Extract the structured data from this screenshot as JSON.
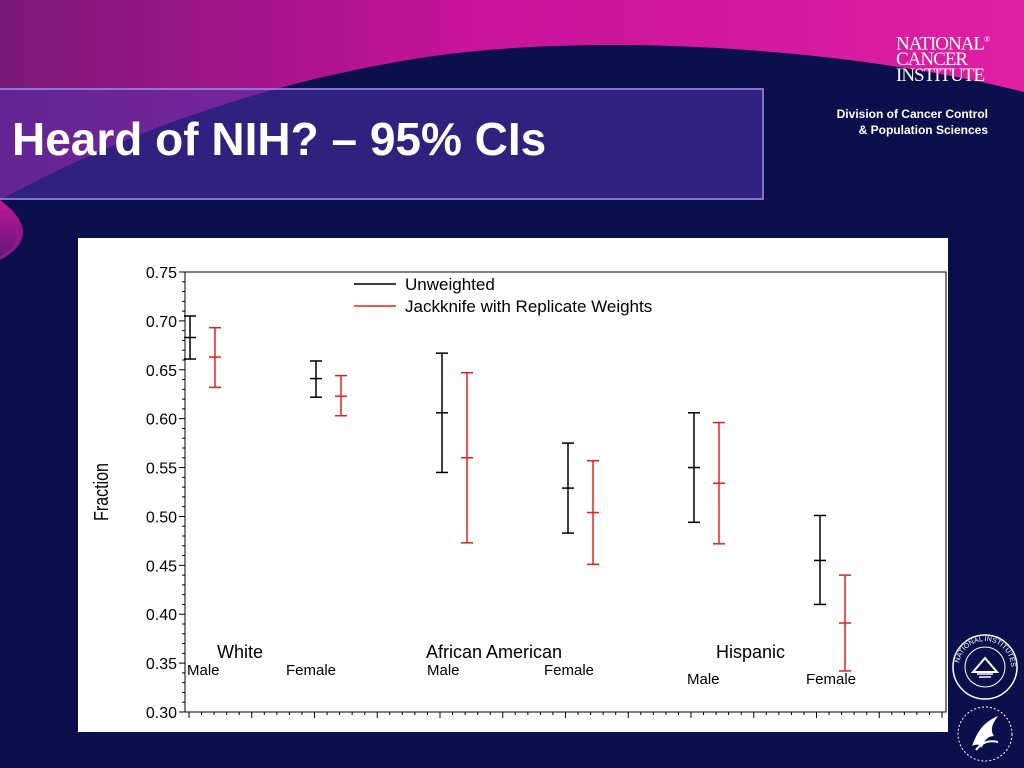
{
  "slide": {
    "title": "Heard of NIH? – 95% CIs",
    "logo_lines": [
      "NATIONAL",
      "CANCER",
      "INSTITUTE"
    ],
    "logo_mark": "®",
    "division_lines": [
      "Division of Cancer Control",
      "& Population Sciences"
    ],
    "seal_text": "NATIONAL INSTITUTES OF HEALTH",
    "colors": {
      "background": "#0b0f4c",
      "magenta": "#d1159b",
      "title_box": "#5032aa"
    }
  },
  "chart_data": {
    "type": "errorbar",
    "ylabel": "Fraction",
    "ylim": [
      0.3,
      0.75
    ],
    "yticks": [
      "0.30",
      "0.35",
      "0.40",
      "0.45",
      "0.50",
      "0.55",
      "0.60",
      "0.65",
      "0.70",
      "0.75"
    ],
    "group_labels": [
      "White",
      "African  American",
      "Hispanic"
    ],
    "subgroup_labels": [
      "Male",
      "Female",
      "Male",
      "Female",
      "Male",
      "Female"
    ],
    "series": [
      {
        "name": "Unweighted",
        "color": "#000000",
        "points": [
          {
            "mid": 0.683,
            "low": 0.661,
            "high": 0.705
          },
          {
            "mid": 0.641,
            "low": 0.622,
            "high": 0.659
          },
          {
            "mid": 0.606,
            "low": 0.545,
            "high": 0.667
          },
          {
            "mid": 0.529,
            "low": 0.483,
            "high": 0.575
          },
          {
            "mid": 0.55,
            "low": 0.494,
            "high": 0.606
          },
          {
            "mid": 0.455,
            "low": 0.41,
            "high": 0.501
          }
        ]
      },
      {
        "name": "Jackknife with Replicate Weights",
        "color": "#e8201c",
        "points": [
          {
            "mid": 0.663,
            "low": 0.632,
            "high": 0.693
          },
          {
            "mid": 0.623,
            "low": 0.603,
            "high": 0.644
          },
          {
            "mid": 0.56,
            "low": 0.473,
            "high": 0.647
          },
          {
            "mid": 0.504,
            "low": 0.451,
            "high": 0.557
          },
          {
            "mid": 0.534,
            "low": 0.472,
            "high": 0.596
          },
          {
            "mid": 0.391,
            "low": 0.342,
            "high": 0.44
          }
        ]
      }
    ],
    "legend_position": "top-center",
    "grid": false
  }
}
